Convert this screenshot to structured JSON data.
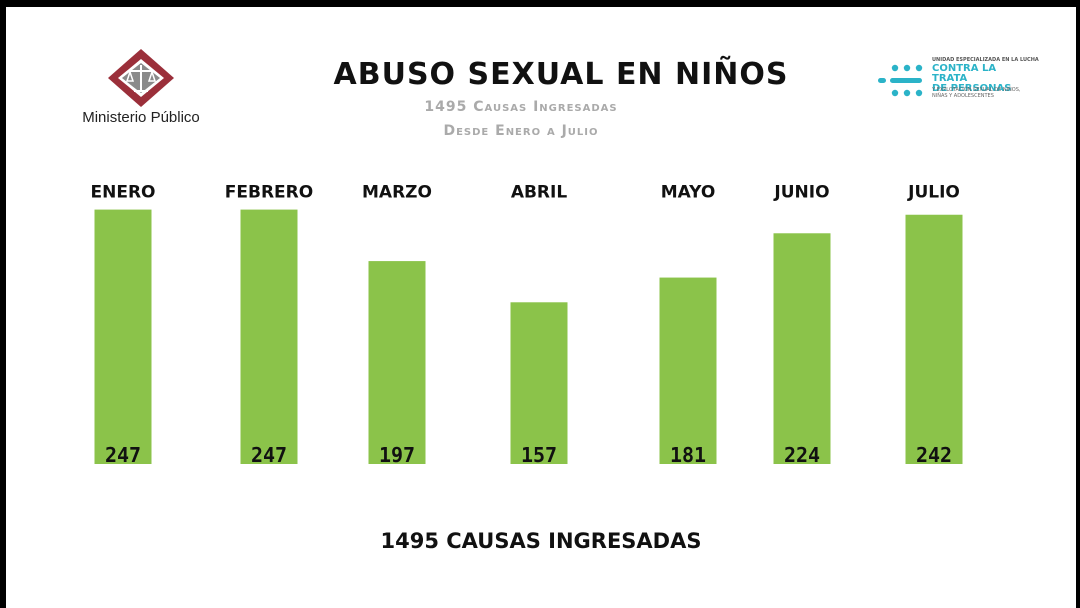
{
  "header": {
    "title": "ABUSO SEXUAL EN NIÑOS",
    "subtitle_line1": "1495 Causas Ingresadas",
    "subtitle_line2": "Desde Enero a Julio"
  },
  "logo_left": {
    "icon": "scales-of-justice-icon",
    "text": "Ministerio Público",
    "colors": [
      "#9b2f3a",
      "#8a8a8a"
    ]
  },
  "logo_right": {
    "icon": "dots-grid-icon",
    "small_text": "UNIDAD ESPECIALIZADA EN LA LUCHA",
    "big_line1": "CONTRA LA TRATA",
    "big_line2": "DE PERSONAS",
    "foot_line1": "Y EXPLOTACIÓN SEXUAL DE NIÑOS,",
    "foot_line2": "NIÑAS Y ADOLESCENTES",
    "color": "#2bb3c8"
  },
  "chart_data": {
    "type": "bar",
    "title": "ABUSO SEXUAL EN NIÑOS",
    "categories": [
      "ENERO",
      "FEBRERO",
      "MARZO",
      "ABRIL",
      "MAYO",
      "JUNIO",
      "JULIO"
    ],
    "values": [
      247,
      247,
      197,
      157,
      181,
      224,
      242
    ],
    "data_labels": [
      "247",
      "247",
      "197",
      "157",
      "181",
      "224",
      "242"
    ],
    "bar_color": "#8bc34a",
    "legend": "none",
    "grid": false
  },
  "footer": {
    "total_text": "1495 CAUSAS INGRESADAS"
  }
}
